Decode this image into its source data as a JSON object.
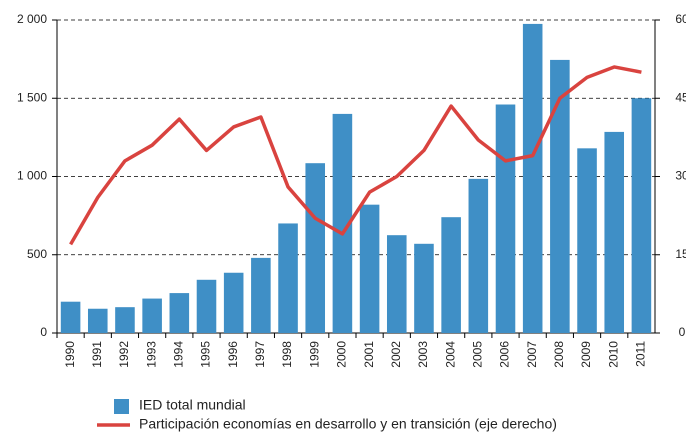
{
  "chart_data": {
    "type": "bar",
    "categories": [
      "1990",
      "1991",
      "1992",
      "1993",
      "1994",
      "1995",
      "1996",
      "1997",
      "1998",
      "1999",
      "2000",
      "2001",
      "2002",
      "2003",
      "2004",
      "2005",
      "2006",
      "2007",
      "2008",
      "2009",
      "2010",
      "2011"
    ],
    "series": [
      {
        "name": "IED total mundial",
        "type": "bar",
        "color": "#3f8fc6",
        "values": [
          200,
          155,
          165,
          220,
          255,
          340,
          385,
          480,
          700,
          1085,
          1400,
          820,
          625,
          570,
          740,
          985,
          1460,
          1975,
          1745,
          1180,
          1285,
          1500
        ]
      },
      {
        "name": "Participación economías en desarrollo y en transición (eje derecho)",
        "type": "line",
        "axis": "y2",
        "color": "#d9433f",
        "values": [
          17,
          26,
          33,
          36,
          41,
          35,
          39.5,
          41.4,
          28,
          22,
          19,
          27,
          30,
          35,
          43.5,
          37,
          33,
          34,
          45,
          49,
          51,
          50
        ]
      }
    ],
    "ylim": [
      0,
      2000
    ],
    "yticks": [
      0,
      500,
      {
        "value": 1000,
        "label": "1 000"
      },
      {
        "value": 1500,
        "label": "1 500"
      },
      {
        "value": 2000,
        "label": "2 000"
      }
    ],
    "y2lim": [
      0,
      60
    ],
    "y2ticks": [
      0,
      15,
      30,
      45,
      60
    ],
    "grid": true
  }
}
